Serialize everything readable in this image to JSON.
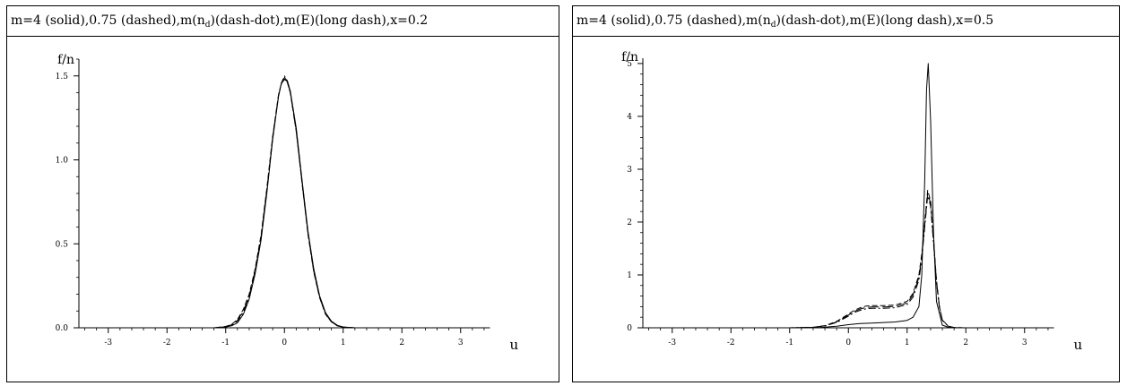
{
  "chart_data": [
    {
      "type": "line",
      "title_parts": [
        "m=4 (solid),0.75 (dashed),m(n",
        "d",
        ")(dash-dot),m(E)(long dash),x=0.2"
      ],
      "xlabel": "u",
      "ylabel": "f/n",
      "xlim": [
        -3.5,
        3.5
      ],
      "ylim": [
        0,
        1.6
      ],
      "xticks": [
        -3,
        -2,
        -1,
        0,
        1,
        2,
        3
      ],
      "xtick_labels": [
        "-3",
        "-2",
        "-1",
        "0",
        "1",
        "2",
        "3"
      ],
      "yticks": [
        0,
        0.5,
        1.0,
        1.5
      ],
      "ytick_labels": [
        "0.0",
        "0.5",
        "1.0",
        "1.5"
      ],
      "grid": false,
      "series": [
        {
          "style": "solid",
          "x": [
            -3.5,
            -1.2,
            -1.0,
            -0.9,
            -0.8,
            -0.7,
            -0.6,
            -0.5,
            -0.4,
            -0.3,
            -0.2,
            -0.1,
            -0.05,
            0,
            0.05,
            0.1,
            0.2,
            0.3,
            0.4,
            0.5,
            0.6,
            0.7,
            0.8,
            0.9,
            1.0,
            1.2,
            3.5
          ],
          "y": [
            0,
            0,
            0.005,
            0.012,
            0.03,
            0.08,
            0.17,
            0.32,
            0.52,
            0.8,
            1.12,
            1.38,
            1.46,
            1.49,
            1.47,
            1.41,
            1.19,
            0.88,
            0.58,
            0.35,
            0.19,
            0.09,
            0.04,
            0.015,
            0.005,
            0,
            0
          ]
        },
        {
          "style": "dashed",
          "x": [
            -3.5,
            -1.2,
            -1.0,
            -0.9,
            -0.8,
            -0.7,
            -0.6,
            -0.5,
            -0.4,
            -0.3,
            -0.2,
            -0.1,
            -0.05,
            0,
            0.05,
            0.1,
            0.2,
            0.3,
            0.4,
            0.5,
            0.6,
            0.7,
            0.8,
            0.9,
            1.0,
            1.2,
            3.5
          ],
          "y": [
            0,
            0,
            0.008,
            0.02,
            0.05,
            0.11,
            0.2,
            0.35,
            0.55,
            0.83,
            1.14,
            1.39,
            1.46,
            1.48,
            1.46,
            1.4,
            1.17,
            0.86,
            0.56,
            0.33,
            0.18,
            0.08,
            0.035,
            0.012,
            0.004,
            0,
            0
          ]
        },
        {
          "style": "dash-dot",
          "x": [
            -3.5,
            -1.2,
            -1.0,
            -0.9,
            -0.8,
            -0.7,
            -0.6,
            -0.5,
            -0.4,
            -0.3,
            -0.2,
            -0.1,
            -0.05,
            0,
            0.05,
            0.1,
            0.2,
            0.3,
            0.4,
            0.5,
            0.6,
            0.7,
            0.8,
            0.9,
            1.0,
            1.2,
            3.5
          ],
          "y": [
            0,
            0,
            0.006,
            0.015,
            0.04,
            0.09,
            0.18,
            0.33,
            0.53,
            0.81,
            1.13,
            1.385,
            1.46,
            1.5,
            1.47,
            1.405,
            1.18,
            0.87,
            0.57,
            0.34,
            0.185,
            0.085,
            0.037,
            0.013,
            0.004,
            0,
            0
          ]
        },
        {
          "style": "long-dash",
          "x": [
            -3.5,
            -1.2,
            -1.0,
            -0.9,
            -0.8,
            -0.7,
            -0.6,
            -0.5,
            -0.4,
            -0.3,
            -0.2,
            -0.1,
            -0.05,
            0,
            0.05,
            0.1,
            0.2,
            0.3,
            0.4,
            0.5,
            0.6,
            0.7,
            0.8,
            0.9,
            1.0,
            1.2,
            3.5
          ],
          "y": [
            0,
            0,
            0.007,
            0.018,
            0.045,
            0.1,
            0.19,
            0.34,
            0.54,
            0.82,
            1.13,
            1.385,
            1.455,
            1.48,
            1.465,
            1.4,
            1.17,
            0.865,
            0.565,
            0.335,
            0.18,
            0.082,
            0.036,
            0.012,
            0.004,
            0,
            0
          ]
        }
      ]
    },
    {
      "type": "line",
      "title_parts": [
        "m=4 (solid),0.75 (dashed),m(n",
        "d",
        ")(dash-dot),m(E)(long dash),x=0.5"
      ],
      "xlabel": "u",
      "ylabel": "f/n",
      "xlim": [
        -3.5,
        3.5
      ],
      "ylim": [
        0,
        5.1
      ],
      "xticks": [
        -3,
        -2,
        -1,
        0,
        1,
        2,
        3
      ],
      "xtick_labels": [
        "-3",
        "-2",
        "-1",
        "0",
        "1",
        "2",
        "3"
      ],
      "yticks": [
        0,
        1,
        2,
        3,
        4,
        5
      ],
      "ytick_labels": [
        "0",
        "1",
        "2",
        "3",
        "4",
        "5"
      ],
      "grid": false,
      "series": [
        {
          "style": "solid",
          "x": [
            -3.5,
            -1.0,
            -0.5,
            -0.2,
            0,
            0.2,
            0.4,
            0.6,
            0.8,
            1.0,
            1.1,
            1.2,
            1.25,
            1.3,
            1.33,
            1.36,
            1.4,
            1.45,
            1.5,
            1.6,
            1.7,
            1.8,
            2.0,
            3.5
          ],
          "y": [
            0,
            0,
            0.005,
            0.03,
            0.06,
            0.08,
            0.09,
            0.1,
            0.11,
            0.14,
            0.2,
            0.4,
            1.0,
            2.8,
            4.5,
            5.0,
            3.9,
            1.8,
            0.5,
            0.05,
            0.01,
            0,
            0,
            0
          ]
        },
        {
          "style": "dashed",
          "x": [
            -3.5,
            -1.0,
            -0.6,
            -0.4,
            -0.2,
            0,
            0.1,
            0.2,
            0.3,
            0.4,
            0.6,
            0.8,
            1.0,
            1.1,
            1.2,
            1.25,
            1.3,
            1.35,
            1.4,
            1.45,
            1.5,
            1.55,
            1.6,
            1.7,
            1.8,
            2.0,
            3.5
          ],
          "y": [
            0,
            0,
            0.01,
            0.04,
            0.12,
            0.26,
            0.33,
            0.38,
            0.41,
            0.42,
            0.42,
            0.43,
            0.5,
            0.65,
            1.0,
            1.4,
            2.0,
            2.6,
            2.4,
            1.7,
            0.9,
            0.4,
            0.15,
            0.03,
            0.005,
            0,
            0
          ]
        },
        {
          "style": "dash-dot",
          "x": [
            -3.5,
            -1.0,
            -0.6,
            -0.4,
            -0.2,
            0,
            0.1,
            0.2,
            0.3,
            0.4,
            0.6,
            0.8,
            1.0,
            1.1,
            1.2,
            1.25,
            1.3,
            1.35,
            1.4,
            1.45,
            1.5,
            1.55,
            1.6,
            1.7,
            1.8,
            2.0,
            3.5
          ],
          "y": [
            0,
            0,
            0.008,
            0.035,
            0.1,
            0.22,
            0.29,
            0.33,
            0.36,
            0.37,
            0.37,
            0.38,
            0.44,
            0.58,
            0.9,
            1.3,
            1.9,
            2.5,
            2.3,
            1.6,
            0.85,
            0.38,
            0.14,
            0.03,
            0.005,
            0,
            0
          ]
        },
        {
          "style": "long-dash",
          "x": [
            -3.5,
            -1.0,
            -0.6,
            -0.4,
            -0.2,
            0,
            0.1,
            0.2,
            0.3,
            0.4,
            0.6,
            0.8,
            1.0,
            1.1,
            1.2,
            1.25,
            1.3,
            1.35,
            1.4,
            1.45,
            1.5,
            1.55,
            1.6,
            1.7,
            1.8,
            2.0,
            3.5
          ],
          "y": [
            0,
            0,
            0.009,
            0.037,
            0.11,
            0.24,
            0.31,
            0.355,
            0.385,
            0.395,
            0.395,
            0.405,
            0.47,
            0.62,
            0.95,
            1.35,
            1.95,
            2.55,
            2.35,
            1.65,
            0.88,
            0.39,
            0.145,
            0.03,
            0.005,
            0,
            0
          ]
        }
      ]
    }
  ]
}
